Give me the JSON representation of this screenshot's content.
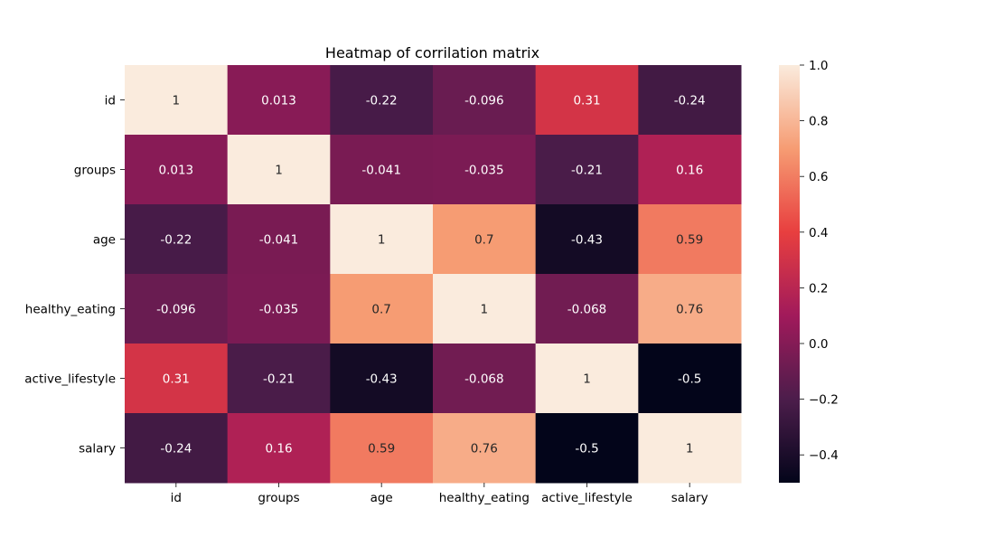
{
  "chart_data": {
    "type": "heatmap",
    "title": "Heatmap of corrilation matrix",
    "xlabel": "",
    "ylabel": "",
    "x_categories": [
      "id",
      "groups",
      "age",
      "healthy_eating",
      "active_lifestyle",
      "salary"
    ],
    "y_categories": [
      "id",
      "groups",
      "age",
      "healthy_eating",
      "active_lifestyle",
      "salary"
    ],
    "values": [
      [
        1,
        0.013,
        -0.22,
        -0.096,
        0.31,
        -0.24
      ],
      [
        0.013,
        1,
        -0.041,
        -0.035,
        -0.21,
        0.16
      ],
      [
        -0.22,
        -0.041,
        1,
        0.7,
        -0.43,
        0.59
      ],
      [
        -0.096,
        -0.035,
        0.7,
        1,
        -0.068,
        0.76
      ],
      [
        0.31,
        -0.21,
        -0.43,
        -0.068,
        1,
        -0.5
      ],
      [
        -0.24,
        0.16,
        0.59,
        0.76,
        -0.5,
        1
      ]
    ],
    "value_labels": [
      [
        "1",
        "0.013",
        "-0.22",
        "-0.096",
        "0.31",
        "-0.24"
      ],
      [
        "0.013",
        "1",
        "-0.041",
        "-0.035",
        "-0.21",
        "0.16"
      ],
      [
        "-0.22",
        "-0.041",
        "1",
        "0.7",
        "-0.43",
        "0.59"
      ],
      [
        "-0.096",
        "-0.035",
        "0.7",
        "1",
        "-0.068",
        "0.76"
      ],
      [
        "0.31",
        "-0.21",
        "-0.43",
        "-0.068",
        "1",
        "-0.5"
      ],
      [
        "-0.24",
        "0.16",
        "0.59",
        "0.76",
        "-0.5",
        "1"
      ]
    ],
    "colorbar": {
      "range": [
        -0.5,
        1.0
      ],
      "ticks": [
        -0.4,
        -0.2,
        0.0,
        0.2,
        0.4,
        0.6,
        0.8,
        1.0
      ],
      "tick_labels": [
        "−0.4",
        "−0.2",
        "0.0",
        "0.2",
        "0.4",
        "0.6",
        "0.8",
        "1.0"
      ],
      "colormap": "rocket",
      "colormap_stops": [
        "#03051a",
        "#4c1d4b",
        "#a11a5b",
        "#e83f3f",
        "#f69c73",
        "#faebdd"
      ]
    },
    "grid": false,
    "legend": "colorbar-right"
  }
}
